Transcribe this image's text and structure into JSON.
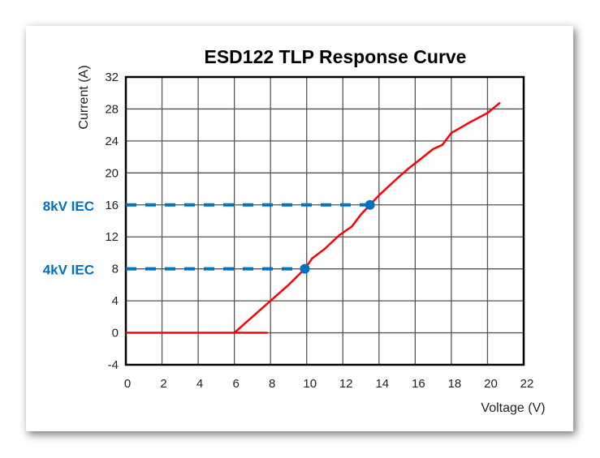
{
  "chart_data": {
    "type": "line",
    "title": "ESD122 TLP Response Curve",
    "xlabel": "Voltage (V)",
    "ylabel": "Current (A)",
    "xlim": [
      0,
      22
    ],
    "ylim": [
      -4,
      32
    ],
    "xticks": [
      0,
      2,
      4,
      6,
      8,
      10,
      12,
      14,
      16,
      18,
      20,
      22
    ],
    "yticks": [
      -4,
      0,
      4,
      8,
      12,
      16,
      20,
      24,
      28,
      32
    ],
    "grid": true,
    "series": [
      {
        "name": "TLP curve",
        "color": "#FF0000",
        "x": [
          0,
          6,
          7.8,
          6,
          7,
          8,
          9,
          9.9,
          10.3,
          11,
          11.8,
          12.5,
          13,
          13.5,
          14,
          15,
          15.6,
          16,
          17,
          17.5,
          18,
          19,
          20,
          20.7
        ],
        "y": [
          0,
          0,
          0,
          0,
          2,
          4,
          6,
          8,
          9.3,
          10.5,
          12.2,
          13.3,
          14.8,
          16,
          17.2,
          19.3,
          20.5,
          21.2,
          23,
          23.5,
          25,
          26.3,
          27.5,
          28.8
        ]
      }
    ],
    "markers": [
      {
        "label": "4kV IEC",
        "x": 9.9,
        "y": 8,
        "color": "#0070C0"
      },
      {
        "label": "8kV IEC",
        "x": 13.5,
        "y": 16,
        "color": "#0070C0"
      }
    ]
  }
}
